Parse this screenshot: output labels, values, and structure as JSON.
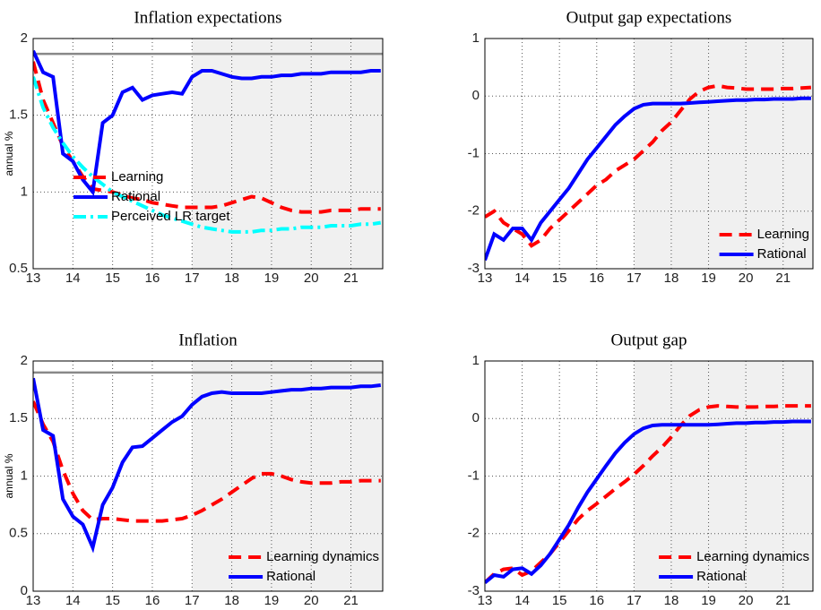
{
  "chart_data": [
    {
      "type": "line",
      "title": "Inflation expectations",
      "y_label": "annual %",
      "x": [
        13,
        13.25,
        13.5,
        13.75,
        14,
        14.25,
        14.5,
        14.75,
        15,
        15.25,
        15.5,
        15.75,
        16,
        16.25,
        16.5,
        16.75,
        17,
        17.25,
        17.5,
        17.75,
        18,
        18.25,
        18.5,
        18.75,
        19,
        19.25,
        19.5,
        19.75,
        20,
        20.25,
        20.5,
        20.75,
        21,
        21.25,
        21.5,
        21.75
      ],
      "series": [
        {
          "name": "Learning",
          "color": "#ff0000",
          "style": "dashed",
          "values": [
            1.85,
            1.6,
            1.45,
            1.3,
            1.2,
            1.1,
            1.02,
            1.01,
            1.0,
            0.98,
            0.96,
            0.95,
            0.93,
            0.92,
            0.91,
            0.9,
            0.9,
            0.9,
            0.9,
            0.91,
            0.93,
            0.95,
            0.97,
            0.96,
            0.93,
            0.9,
            0.88,
            0.87,
            0.87,
            0.87,
            0.88,
            0.88,
            0.88,
            0.89,
            0.89,
            0.89
          ]
        },
        {
          "name": "Rational",
          "color": "#0000ff",
          "style": "solid",
          "values": [
            1.92,
            1.78,
            1.75,
            1.25,
            1.2,
            1.08,
            1.0,
            1.45,
            1.5,
            1.65,
            1.68,
            1.6,
            1.63,
            1.64,
            1.65,
            1.64,
            1.75,
            1.79,
            1.79,
            1.77,
            1.75,
            1.74,
            1.74,
            1.75,
            1.75,
            1.76,
            1.76,
            1.77,
            1.77,
            1.77,
            1.78,
            1.78,
            1.78,
            1.78,
            1.79,
            1.79
          ]
        },
        {
          "name": "Perceived LR target",
          "color": "#00ffff",
          "style": "dashdot",
          "values": [
            1.75,
            1.55,
            1.42,
            1.32,
            1.23,
            1.16,
            1.1,
            1.05,
            1.0,
            0.97,
            0.94,
            0.91,
            0.88,
            0.85,
            0.83,
            0.81,
            0.79,
            0.77,
            0.76,
            0.75,
            0.74,
            0.74,
            0.74,
            0.75,
            0.75,
            0.76,
            0.76,
            0.77,
            0.77,
            0.77,
            0.78,
            0.78,
            0.78,
            0.79,
            0.79,
            0.8
          ]
        }
      ],
      "xlim": [
        13,
        21.8
      ],
      "xticks": [
        13,
        14,
        15,
        16,
        17,
        18,
        19,
        20,
        21
      ],
      "ylim": [
        0.5,
        2
      ],
      "yticks": [
        0.5,
        1,
        1.5,
        2
      ],
      "shade_x": [
        17,
        21.8
      ],
      "reference_line": 1.9,
      "grid": true,
      "legend": "lower left"
    },
    {
      "type": "line",
      "title": "Output gap expectations",
      "x": [
        13,
        13.25,
        13.5,
        13.75,
        14,
        14.25,
        14.5,
        14.75,
        15,
        15.25,
        15.5,
        15.75,
        16,
        16.25,
        16.5,
        16.75,
        17,
        17.25,
        17.5,
        17.75,
        18,
        18.25,
        18.5,
        18.75,
        19,
        19.25,
        19.5,
        19.75,
        20,
        20.25,
        20.5,
        20.75,
        21,
        21.25,
        21.5,
        21.75
      ],
      "series": [
        {
          "name": "Learning",
          "color": "#ff0000",
          "style": "dashed",
          "values": [
            -2.1,
            -2.0,
            -2.2,
            -2.3,
            -2.4,
            -2.6,
            -2.5,
            -2.3,
            -2.15,
            -2.0,
            -1.85,
            -1.7,
            -1.55,
            -1.45,
            -1.3,
            -1.2,
            -1.1,
            -0.95,
            -0.8,
            -0.6,
            -0.45,
            -0.25,
            -0.05,
            0.08,
            0.15,
            0.18,
            0.15,
            0.14,
            0.12,
            0.12,
            0.12,
            0.12,
            0.13,
            0.13,
            0.14,
            0.15
          ]
        },
        {
          "name": "Rational",
          "color": "#0000ff",
          "style": "solid",
          "values": [
            -2.85,
            -2.4,
            -2.5,
            -2.3,
            -2.3,
            -2.5,
            -2.2,
            -2.0,
            -1.8,
            -1.6,
            -1.35,
            -1.1,
            -0.9,
            -0.7,
            -0.5,
            -0.35,
            -0.22,
            -0.15,
            -0.13,
            -0.13,
            -0.13,
            -0.13,
            -0.12,
            -0.11,
            -0.1,
            -0.09,
            -0.08,
            -0.07,
            -0.07,
            -0.06,
            -0.06,
            -0.05,
            -0.05,
            -0.05,
            -0.04,
            -0.04
          ]
        }
      ],
      "xlim": [
        13,
        21.8
      ],
      "xticks": [
        13,
        14,
        15,
        16,
        17,
        18,
        19,
        20,
        21
      ],
      "ylim": [
        -3,
        1
      ],
      "yticks": [
        -3,
        -2,
        -1,
        0,
        1
      ],
      "shade_x": [
        17,
        21.8
      ],
      "grid": true,
      "legend": "lower right"
    },
    {
      "type": "line",
      "title": "Inflation",
      "y_label": "annual %",
      "x": [
        13,
        13.25,
        13.5,
        13.75,
        14,
        14.25,
        14.5,
        14.75,
        15,
        15.25,
        15.5,
        15.75,
        16,
        16.25,
        16.5,
        16.75,
        17,
        17.25,
        17.5,
        17.75,
        18,
        18.25,
        18.5,
        18.75,
        19,
        19.25,
        19.5,
        19.75,
        20,
        20.25,
        20.5,
        20.75,
        21,
        21.25,
        21.5,
        21.75
      ],
      "series": [
        {
          "name": "Learning dynamics",
          "color": "#ff0000",
          "style": "dashed",
          "values": [
            1.65,
            1.45,
            1.3,
            1.05,
            0.85,
            0.7,
            0.62,
            0.63,
            0.63,
            0.62,
            0.61,
            0.61,
            0.61,
            0.61,
            0.62,
            0.63,
            0.66,
            0.7,
            0.75,
            0.8,
            0.86,
            0.92,
            0.98,
            1.02,
            1.02,
            1.0,
            0.97,
            0.95,
            0.94,
            0.94,
            0.94,
            0.95,
            0.95,
            0.96,
            0.96,
            0.96
          ]
        },
        {
          "name": "Rational",
          "color": "#0000ff",
          "style": "solid",
          "values": [
            1.85,
            1.4,
            1.35,
            0.8,
            0.65,
            0.58,
            0.38,
            0.75,
            0.9,
            1.12,
            1.25,
            1.26,
            1.33,
            1.4,
            1.47,
            1.52,
            1.62,
            1.69,
            1.72,
            1.73,
            1.72,
            1.72,
            1.72,
            1.72,
            1.73,
            1.74,
            1.75,
            1.75,
            1.76,
            1.76,
            1.77,
            1.77,
            1.77,
            1.78,
            1.78,
            1.79
          ]
        }
      ],
      "xlim": [
        13,
        21.8
      ],
      "xticks": [
        13,
        14,
        15,
        16,
        17,
        18,
        19,
        20,
        21
      ],
      "ylim": [
        0,
        2
      ],
      "yticks": [
        0,
        0.5,
        1,
        1.5,
        2
      ],
      "shade_x": [
        17,
        21.8
      ],
      "reference_line": 1.9,
      "grid": true,
      "legend": "lower right"
    },
    {
      "type": "line",
      "title": "Output gap",
      "x": [
        13,
        13.25,
        13.5,
        13.75,
        14,
        14.25,
        14.5,
        14.75,
        15,
        15.25,
        15.5,
        15.75,
        16,
        16.25,
        16.5,
        16.75,
        17,
        17.25,
        17.5,
        17.75,
        18,
        18.25,
        18.5,
        18.75,
        19,
        19.25,
        19.5,
        19.75,
        20,
        20.25,
        20.5,
        20.75,
        21,
        21.25,
        21.5,
        21.75
      ],
      "series": [
        {
          "name": "Learning dynamics",
          "color": "#ff0000",
          "style": "dashed",
          "values": [
            -2.85,
            -2.7,
            -2.62,
            -2.6,
            -2.72,
            -2.65,
            -2.5,
            -2.35,
            -2.15,
            -1.95,
            -1.75,
            -1.6,
            -1.48,
            -1.35,
            -1.22,
            -1.1,
            -0.97,
            -0.82,
            -0.65,
            -0.5,
            -0.32,
            -0.12,
            0.05,
            0.15,
            0.2,
            0.22,
            0.21,
            0.2,
            0.2,
            0.2,
            0.21,
            0.21,
            0.22,
            0.22,
            0.22,
            0.22
          ]
        },
        {
          "name": "Rational",
          "color": "#0000ff",
          "style": "solid",
          "values": [
            -2.85,
            -2.72,
            -2.75,
            -2.62,
            -2.6,
            -2.7,
            -2.55,
            -2.35,
            -2.1,
            -1.85,
            -1.55,
            -1.28,
            -1.05,
            -0.82,
            -0.6,
            -0.42,
            -0.27,
            -0.17,
            -0.12,
            -0.11,
            -0.11,
            -0.11,
            -0.11,
            -0.11,
            -0.11,
            -0.1,
            -0.09,
            -0.08,
            -0.08,
            -0.07,
            -0.07,
            -0.06,
            -0.06,
            -0.05,
            -0.05,
            -0.05
          ]
        }
      ],
      "xlim": [
        13,
        21.8
      ],
      "xticks": [
        13,
        14,
        15,
        16,
        17,
        18,
        19,
        20,
        21
      ],
      "ylim": [
        -3,
        1
      ],
      "yticks": [
        -3,
        -2,
        -1,
        0,
        1
      ],
      "shade_x": [
        17,
        21.8
      ],
      "grid": true,
      "legend": "lower right"
    }
  ]
}
